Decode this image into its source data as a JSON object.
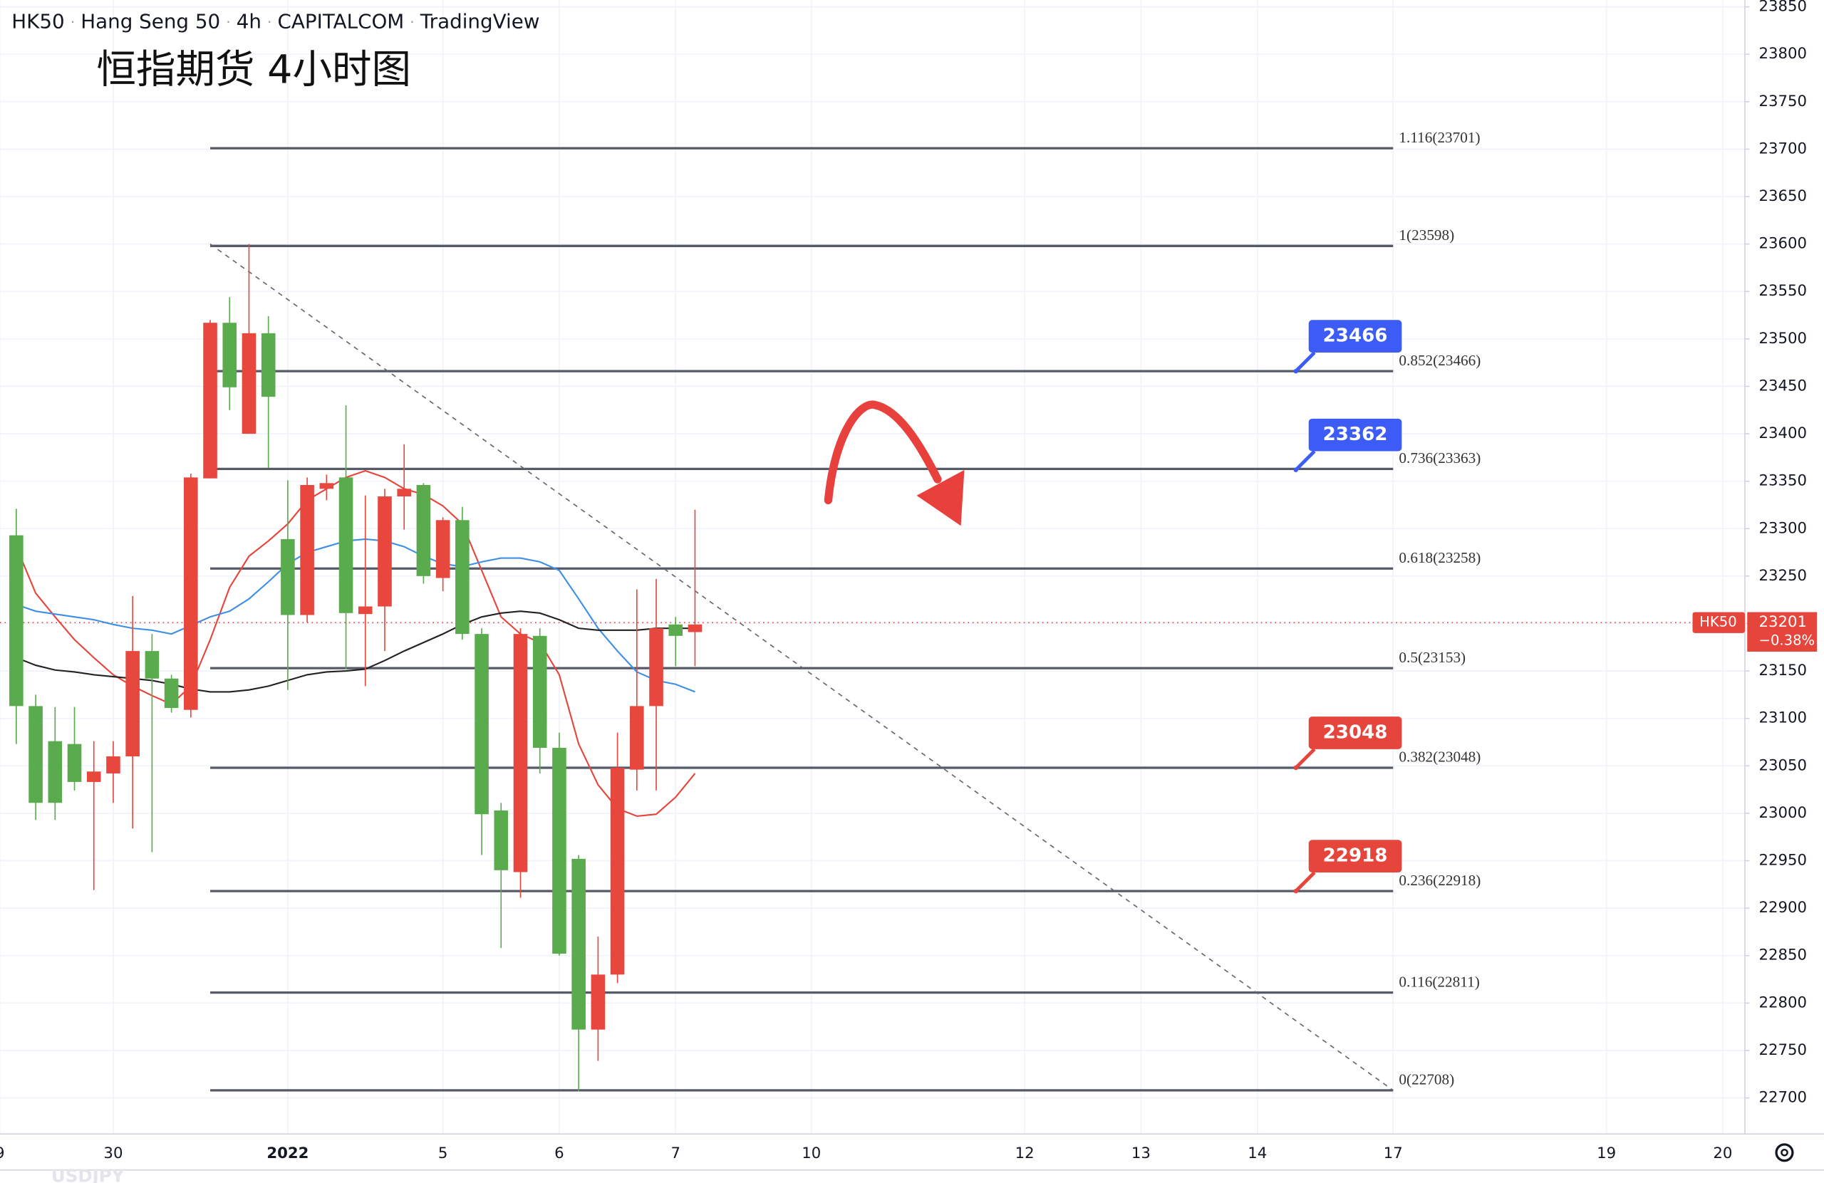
{
  "chart_data": {
    "type": "candlestick",
    "header_items": [
      "HK50",
      "Hang Seng 50",
      "4h",
      "CAPITALCOM",
      "TradingView"
    ],
    "header_separator": "·",
    "title": "恒指期货 4小时图",
    "watermark": "USDJPY",
    "up_color": "#5aab4e",
    "down_color": "#e7473d",
    "x": [
      0,
      1,
      2,
      3,
      4,
      5,
      6,
      7,
      8,
      9,
      10,
      11,
      12,
      13,
      14,
      15,
      16,
      17,
      18,
      19,
      20,
      21,
      22,
      23,
      24,
      25,
      26,
      27,
      28,
      29,
      30,
      31,
      32,
      33,
      34,
      35
    ],
    "open": [
      23113,
      23011,
      23011,
      23033,
      23044,
      23060,
      23171,
      23142,
      23111,
      23354,
      23517,
      23449,
      23506,
      23439,
      23209,
      23346,
      23348,
      23211,
      23218,
      23334,
      23342,
      23250,
      23309,
      23189,
      22999,
      22940,
      23189,
      23069,
      22852,
      22772,
      22830,
      23048,
      23113,
      23195,
      23187,
      23199
    ],
    "high": [
      23321,
      23125,
      23112,
      23112,
      23076,
      23076,
      23229,
      23189,
      23146,
      23358,
      23520,
      23544,
      23600,
      23524,
      23351,
      23354,
      23357,
      23430,
      23335,
      23342,
      23389,
      23348,
      23312,
      23323,
      23195,
      23011,
      23195,
      23195,
      23085,
      22956,
      22870,
      23085,
      23236,
      23247,
      23207,
      23320
    ],
    "low": [
      23073,
      22993,
      22993,
      23024,
      22919,
      23011,
      22984,
      22959,
      23106,
      23101,
      23353,
      23425,
      23400,
      23364,
      23130,
      23201,
      23330,
      23152,
      23134,
      23171,
      23299,
      23242,
      23234,
      23183,
      22956,
      22858,
      22911,
      23042,
      22850,
      22707,
      22739,
      22821,
      23024,
      23024,
      23155,
      23155
    ],
    "close": [
      23293,
      23113,
      23076,
      23073,
      23033,
      23042,
      23060,
      23171,
      23142,
      23109,
      23353,
      23517,
      23400,
      23506,
      23289,
      23209,
      23342,
      23354,
      23210,
      23218,
      23334,
      23346,
      23248,
      23309,
      23189,
      23003,
      22938,
      23187,
      23069,
      22952,
      22772,
      22830,
      23046,
      23113,
      23199,
      23191
    ],
    "series": [
      {
        "color": "#e5453b",
        "values": [
          23281,
          23232,
          23207,
          23183,
          23164,
          23146,
          23134,
          23124,
          23115,
          23134,
          23183,
          23238,
          23271,
          23287,
          23305,
          23330,
          23342,
          23354,
          23361,
          23354,
          23342,
          23336,
          23324,
          23305,
          23256,
          23207,
          23189,
          23180,
          23146,
          23073,
          23030,
          23005,
          22997,
          22999,
          23017,
          23042
        ]
      },
      {
        "color": "#3d8fe6",
        "values": [
          23220,
          23213,
          23210,
          23207,
          23204,
          23199,
          23195,
          23193,
          23189,
          23198,
          23207,
          23213,
          23226,
          23244,
          23263,
          23275,
          23281,
          23287,
          23289,
          23287,
          23281,
          23271,
          23263,
          23260,
          23265,
          23269,
          23269,
          23265,
          23256,
          23226,
          23195,
          23171,
          23149,
          23140,
          23136,
          23128
        ]
      },
      {
        "color": "#222222",
        "values": [
          23164,
          23156,
          23151,
          23149,
          23146,
          23144,
          23142,
          23140,
          23136,
          23131,
          23128,
          23128,
          23130,
          23134,
          23140,
          23146,
          23149,
          23150,
          23152,
          23161,
          23171,
          23180,
          23189,
          23199,
          23207,
          23211,
          23213,
          23211,
          23204,
          23195,
          23193,
          23193,
          23193,
          23195,
          23195,
          23195
        ]
      }
    ],
    "fib_levels": [
      {
        "value": 23701,
        "label": "1.116(23701)"
      },
      {
        "value": 23598,
        "label": "1(23598)"
      },
      {
        "value": 23466,
        "label": "0.852(23466)"
      },
      {
        "value": 23363,
        "label": "0.736(23363)"
      },
      {
        "value": 23258,
        "label": "0.618(23258)"
      },
      {
        "value": 23153,
        "label": "0.5(23153)"
      },
      {
        "value": 23048,
        "label": "0.382(23048)"
      },
      {
        "value": 22918,
        "label": "0.236(22918)"
      },
      {
        "value": 22811,
        "label": "0.116(22811)"
      },
      {
        "value": 22708,
        "label": "0(22708)"
      }
    ],
    "trendline": {
      "x": [
        10,
        71
      ],
      "y": [
        23600,
        22708
      ]
    },
    "price_tags": [
      {
        "value": 23466,
        "color": "#3d5cf5"
      },
      {
        "value": 23362,
        "color": "#3d5cf5"
      },
      {
        "value": 23048,
        "color": "#e5453b"
      },
      {
        "value": 22918,
        "color": "#e5453b"
      }
    ],
    "last_price": 23201,
    "last_symbol": "HK50",
    "last_change": "−0.38%",
    "last_color": "#e5453b",
    "xlim": [
      -0.84,
      89.14
    ],
    "xticks": [
      {
        "value": -0.85,
        "label": "9"
      },
      {
        "value": 5,
        "label": "30"
      },
      {
        "value": 14,
        "label": "2022"
      },
      {
        "value": 22,
        "label": "5"
      },
      {
        "value": 28,
        "label": "6"
      },
      {
        "value": 34,
        "label": "7"
      },
      {
        "value": 41,
        "label": "10"
      },
      {
        "value": 52,
        "label": "12"
      },
      {
        "value": 58,
        "label": "13"
      },
      {
        "value": 64,
        "label": "14"
      },
      {
        "value": 71,
        "label": "17"
      },
      {
        "value": 82,
        "label": "19"
      },
      {
        "value": 88,
        "label": "20"
      }
    ],
    "ylim": [
      22662,
      23857
    ],
    "yticks": [
      22700,
      22750,
      22800,
      22850,
      22900,
      22950,
      23000,
      23050,
      23100,
      23150,
      23200,
      23250,
      23300,
      23350,
      23400,
      23450,
      23500,
      23550,
      23600,
      23650,
      23700,
      23750,
      23800,
      23850
    ],
    "grid": true
  }
}
